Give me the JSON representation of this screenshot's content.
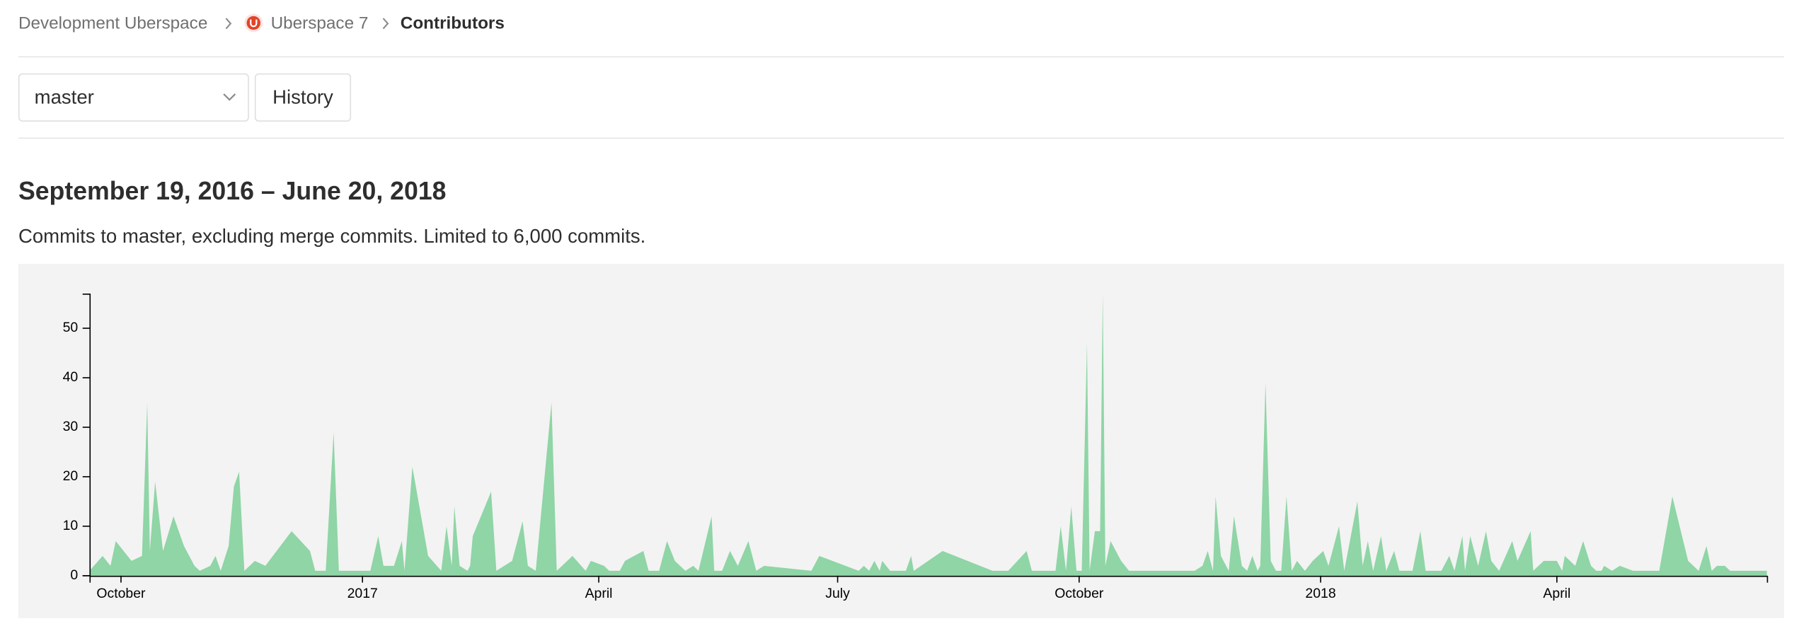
{
  "breadcrumb": [
    "Development Uberspace",
    "Uberspace 7",
    "Contributors"
  ],
  "branch_dropdown": "master",
  "history_button": "History",
  "heading": "September 19, 2016 – June 20, 2018",
  "description": "Commits to master, excluding merge commits. Limited to 6,000 commits.",
  "chart_data": {
    "type": "area",
    "color": "#8fd5a6",
    "background": "#f3f3f3",
    "x": [
      "2016-09-19",
      "2016-09-24",
      "2016-09-27",
      "2016-09-29",
      "2016-10-05",
      "2016-10-09",
      "2016-10-11",
      "2016-10-12",
      "2016-10-14",
      "2016-10-17",
      "2016-10-21",
      "2016-10-25",
      "2016-10-29",
      "2016-10-31",
      "2016-11-04",
      "2016-11-06",
      "2016-11-08",
      "2016-11-11",
      "2016-11-13",
      "2016-11-15",
      "2016-11-17",
      "2016-11-21",
      "2016-11-25",
      "2016-12-05",
      "2016-12-12",
      "2016-12-14",
      "2016-12-18",
      "2016-12-21",
      "2016-12-23",
      "2017-01-04",
      "2017-01-07",
      "2017-01-09",
      "2017-01-13",
      "2017-01-16",
      "2017-01-17",
      "2017-01-20",
      "2017-01-26",
      "2017-01-31",
      "2017-02-02",
      "2017-02-04",
      "2017-02-05",
      "2017-02-07",
      "2017-02-10",
      "2017-02-11",
      "2017-02-12",
      "2017-02-19",
      "2017-02-21",
      "2017-02-27",
      "2017-03-03",
      "2017-03-05",
      "2017-03-08",
      "2017-03-14",
      "2017-03-16",
      "2017-03-22",
      "2017-03-27",
      "2017-03-29",
      "2017-04-03",
      "2017-04-05",
      "2017-04-09",
      "2017-04-11",
      "2017-04-18",
      "2017-04-20",
      "2017-04-24",
      "2017-04-27",
      "2017-04-30",
      "2017-05-04",
      "2017-05-07",
      "2017-05-09",
      "2017-05-14",
      "2017-05-15",
      "2017-05-18",
      "2017-05-21",
      "2017-05-24",
      "2017-05-28",
      "2017-05-31",
      "2017-06-03",
      "2017-06-21",
      "2017-06-24",
      "2017-07-09",
      "2017-07-11",
      "2017-07-13",
      "2017-07-15",
      "2017-07-17",
      "2017-07-18",
      "2017-07-21",
      "2017-07-27",
      "2017-07-29",
      "2017-07-30",
      "2017-08-10",
      "2017-08-29",
      "2017-09-04",
      "2017-09-11",
      "2017-09-13",
      "2017-09-22",
      "2017-09-24",
      "2017-09-26",
      "2017-09-28",
      "2017-09-30",
      "2017-10-02",
      "2017-10-04",
      "2017-10-05",
      "2017-10-07",
      "2017-10-09",
      "2017-10-10",
      "2017-10-11",
      "2017-10-13",
      "2017-10-17",
      "2017-10-20",
      "2017-11-14",
      "2017-11-17",
      "2017-11-19",
      "2017-11-21",
      "2017-11-22",
      "2017-11-24",
      "2017-11-27",
      "2017-11-29",
      "2017-12-02",
      "2017-12-04",
      "2017-12-06",
      "2017-12-08",
      "2017-12-09",
      "2017-12-11",
      "2017-12-13",
      "2017-12-15",
      "2017-12-17",
      "2017-12-19",
      "2017-12-21",
      "2017-12-23",
      "2017-12-26",
      "2017-12-29",
      "2018-01-02",
      "2018-01-04",
      "2018-01-08",
      "2018-01-10",
      "2018-01-15",
      "2018-01-17",
      "2018-01-19",
      "2018-01-21",
      "2018-01-24",
      "2018-01-26",
      "2018-01-29",
      "2018-01-31",
      "2018-02-05",
      "2018-02-08",
      "2018-02-10",
      "2018-02-16",
      "2018-02-17",
      "2018-02-19",
      "2018-02-21",
      "2018-02-24",
      "2018-02-25",
      "2018-02-27",
      "2018-03-02",
      "2018-03-05",
      "2018-03-07",
      "2018-03-10",
      "2018-03-15",
      "2018-03-17",
      "2018-03-22",
      "2018-03-23",
      "2018-03-27",
      "2018-04-01",
      "2018-04-03",
      "2018-04-04",
      "2018-04-08",
      "2018-04-11",
      "2018-04-14",
      "2018-04-16",
      "2018-04-18",
      "2018-04-19",
      "2018-04-22",
      "2018-04-25",
      "2018-04-30",
      "2018-05-10",
      "2018-05-15",
      "2018-05-21",
      "2018-05-25",
      "2018-05-28",
      "2018-05-30",
      "2018-06-01",
      "2018-06-04",
      "2018-06-06",
      "2018-06-19",
      "2018-06-20"
    ],
    "values": [
      1,
      4,
      2,
      7,
      3,
      4,
      35,
      5,
      19,
      5,
      12,
      6,
      2,
      1,
      2,
      4,
      1,
      6,
      18,
      21,
      1,
      3,
      2,
      9,
      5,
      1,
      1,
      29,
      1,
      1,
      8,
      2,
      2,
      7,
      1,
      22,
      4,
      1,
      10,
      2,
      14,
      2,
      1,
      2,
      8,
      17,
      1,
      3,
      11,
      2,
      1,
      35,
      1,
      4,
      1,
      3,
      2,
      1,
      1,
      3,
      5,
      1,
      1,
      7,
      3,
      1,
      2,
      1,
      12,
      1,
      1,
      5,
      2,
      7,
      1,
      2,
      1,
      4,
      1,
      2,
      1,
      3,
      1,
      3,
      1,
      1,
      4,
      1,
      5,
      1,
      1,
      5,
      1,
      1,
      10,
      1,
      14,
      1,
      1,
      47,
      1,
      9,
      9,
      57,
      2,
      7,
      3,
      1,
      1,
      2,
      5,
      1,
      16,
      4,
      1,
      12,
      2,
      1,
      4,
      1,
      2,
      39,
      3,
      1,
      1,
      16,
      1,
      3,
      1,
      3,
      5,
      2,
      10,
      1,
      15,
      2,
      7,
      1,
      8,
      1,
      5,
      1,
      1,
      9,
      1,
      1,
      2,
      4,
      1,
      8,
      1,
      8,
      2,
      9,
      3,
      1,
      7,
      3,
      9,
      1,
      3,
      3,
      1,
      4,
      2,
      7,
      2,
      1,
      1,
      2,
      1,
      2,
      1,
      1,
      16,
      3,
      1,
      6,
      1,
      2,
      2,
      1,
      1,
      1
    ],
    "xlim": [
      "2016-09-19",
      "2018-06-20"
    ],
    "xticks": [
      {
        "value": "2016-10-01",
        "label": "October"
      },
      {
        "value": "2017-01-01",
        "label": "2017"
      },
      {
        "value": "2017-04-01",
        "label": "April"
      },
      {
        "value": "2017-07-01",
        "label": "July"
      },
      {
        "value": "2017-10-01",
        "label": "October"
      },
      {
        "value": "2018-01-01",
        "label": "2018"
      },
      {
        "value": "2018-04-01",
        "label": "April"
      }
    ],
    "ylim": [
      0,
      57
    ],
    "yticks": [
      0,
      10,
      20,
      30,
      40,
      50
    ]
  }
}
